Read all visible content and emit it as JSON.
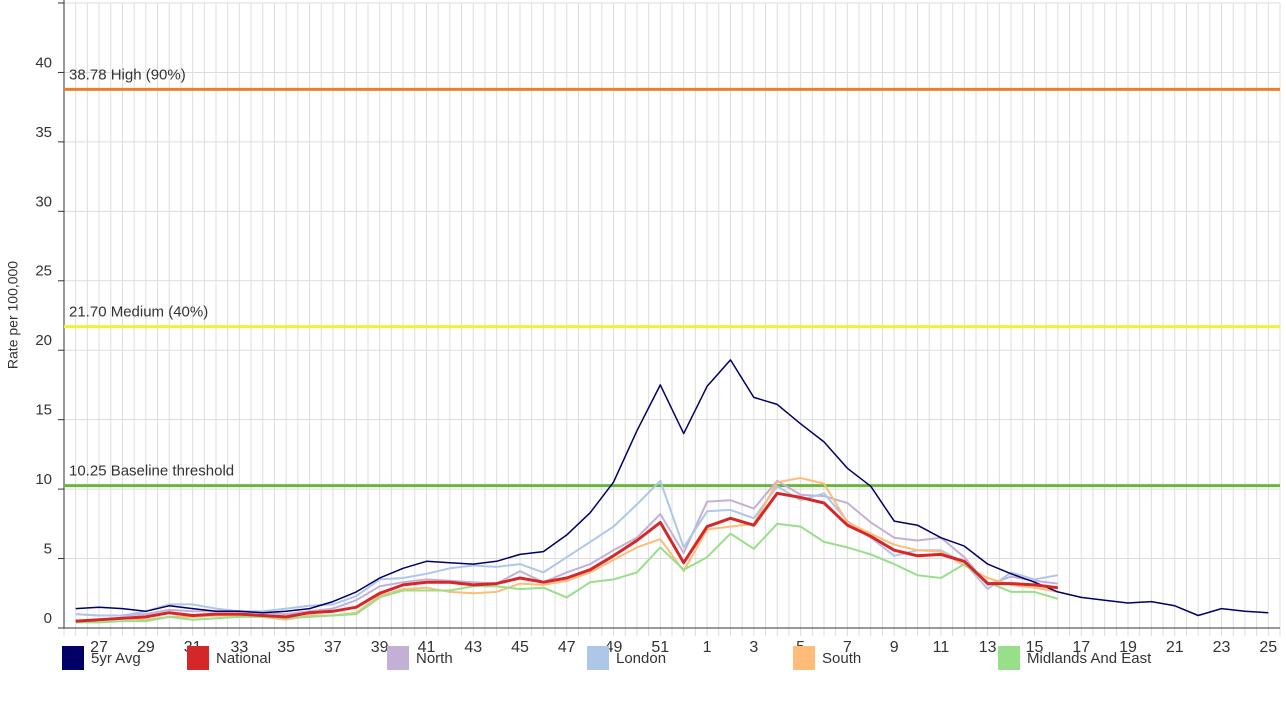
{
  "chart_data": {
    "type": "line",
    "y_label": "Rate per 100,000",
    "categories": [
      null,
      "27",
      null,
      "29",
      null,
      "31",
      null,
      "33",
      null,
      "35",
      null,
      "37",
      null,
      "39",
      null,
      "41",
      null,
      "43",
      null,
      "45",
      null,
      "47",
      null,
      "49",
      null,
      "51",
      null,
      "1",
      null,
      "3",
      null,
      "5",
      null,
      "7",
      null,
      "9",
      null,
      "11",
      null,
      "13",
      null,
      "15",
      null,
      "17",
      null,
      "19",
      null,
      "21",
      null,
      "23",
      null,
      "25"
    ],
    "ylim": [
      0,
      45
    ],
    "yticks": [
      0,
      5,
      10,
      15,
      20,
      25,
      30,
      35,
      40,
      45
    ],
    "grid": true,
    "legend": "bottom",
    "thresholds": [
      {
        "value": 38.78,
        "label": "38.78 High (90%)",
        "color": "#e8822a"
      },
      {
        "value": 21.7,
        "label": "21.70 Medium (40%)",
        "color": "#f5f032"
      },
      {
        "value": 10.25,
        "label": "10.25 Baseline threshold",
        "color": "#6cb33f"
      }
    ],
    "series": [
      {
        "name": "5yr Avg",
        "color": "#000066",
        "width": 1.5,
        "values": [
          1.4,
          1.5,
          1.4,
          1.2,
          1.6,
          1.4,
          1.2,
          1.2,
          1.1,
          1.2,
          1.4,
          1.9,
          2.6,
          3.6,
          4.3,
          4.8,
          4.7,
          4.6,
          4.8,
          5.3,
          5.5,
          6.7,
          8.3,
          10.5,
          14.2,
          17.5,
          14.0,
          17.4,
          19.3,
          16.6,
          16.1,
          14.7,
          13.4,
          11.5,
          10.2,
          7.7,
          7.4,
          6.5,
          5.9,
          4.6,
          3.9,
          3.3,
          2.6,
          2.2,
          2.0,
          1.8,
          1.9,
          1.6,
          0.9,
          1.4,
          1.2,
          1.1
        ]
      },
      {
        "name": "National",
        "color": "#d62728",
        "width": 3,
        "values": [
          0.5,
          0.6,
          0.7,
          0.8,
          1.1,
          0.9,
          1.0,
          1.0,
          0.9,
          0.8,
          1.1,
          1.2,
          1.5,
          2.5,
          3.1,
          3.3,
          3.3,
          3.1,
          3.2,
          3.6,
          3.3,
          3.6,
          4.2,
          5.2,
          6.3,
          7.6,
          4.7,
          7.3,
          7.9,
          7.4,
          9.7,
          9.4,
          9.0,
          7.4,
          6.6,
          5.6,
          5.2,
          5.3,
          4.8,
          3.2,
          3.2,
          3.1,
          2.9,
          null,
          null,
          null,
          null,
          null,
          null,
          null,
          null,
          null
        ]
      },
      {
        "name": "North",
        "color": "#c5b0d5",
        "width": 2,
        "values": [
          1.0,
          0.9,
          0.9,
          1.0,
          1.3,
          1.2,
          1.2,
          1.2,
          1.1,
          1.0,
          1.2,
          1.4,
          2.0,
          3.0,
          3.3,
          3.5,
          3.4,
          3.3,
          3.2,
          4.1,
          3.3,
          4.0,
          4.6,
          5.6,
          6.5,
          8.2,
          5.4,
          9.1,
          9.2,
          8.6,
          10.6,
          9.6,
          9.5,
          9.0,
          7.6,
          6.5,
          6.3,
          6.5,
          5.1,
          3.1,
          3.7,
          3.4,
          3.2,
          null,
          null,
          null,
          null,
          null,
          null,
          null,
          null,
          null
        ]
      },
      {
        "name": "London",
        "color": "#aec7e8",
        "width": 2,
        "values": [
          1.0,
          0.9,
          0.9,
          1.2,
          1.7,
          1.7,
          1.4,
          1.2,
          1.2,
          1.4,
          1.6,
          1.7,
          2.3,
          3.5,
          3.6,
          3.9,
          4.3,
          4.5,
          4.4,
          4.6,
          4.0,
          5.1,
          6.2,
          7.3,
          8.9,
          10.6,
          5.8,
          8.4,
          8.5,
          7.9,
          10.2,
          9.2,
          9.7,
          7.7,
          6.5,
          5.2,
          5.6,
          5.6,
          4.7,
          2.8,
          4.0,
          3.5,
          3.8,
          null,
          null,
          null,
          null,
          null,
          null,
          null,
          null,
          null
        ]
      },
      {
        "name": "South",
        "color": "#ffbb78",
        "width": 2,
        "values": [
          0.5,
          0.6,
          0.7,
          0.6,
          0.8,
          0.8,
          0.9,
          0.9,
          0.8,
          0.6,
          0.9,
          0.9,
          1.1,
          2.3,
          2.8,
          2.9,
          2.6,
          2.5,
          2.6,
          3.2,
          3.1,
          3.4,
          4.0,
          4.9,
          5.8,
          6.4,
          4.1,
          7.1,
          7.3,
          7.5,
          10.5,
          10.8,
          10.4,
          7.6,
          6.8,
          6.0,
          5.6,
          5.5,
          4.5,
          3.6,
          3.1,
          2.9,
          2.6,
          null,
          null,
          null,
          null,
          null,
          null,
          null,
          null,
          null
        ]
      },
      {
        "name": "Midlands And East",
        "color": "#98df8a",
        "width": 2,
        "values": [
          0.4,
          0.4,
          0.5,
          0.5,
          0.8,
          0.6,
          0.7,
          0.8,
          0.8,
          0.7,
          0.8,
          0.9,
          1.0,
          2.2,
          2.7,
          2.7,
          2.7,
          3.0,
          3.0,
          2.8,
          2.9,
          2.2,
          3.3,
          3.5,
          4.0,
          5.8,
          4.2,
          5.1,
          6.8,
          5.7,
          7.5,
          7.3,
          6.2,
          5.8,
          5.3,
          4.6,
          3.8,
          3.6,
          4.6,
          3.3,
          2.6,
          2.6,
          2.1,
          null,
          null,
          null,
          null,
          null,
          null,
          null,
          null,
          null
        ]
      }
    ]
  }
}
